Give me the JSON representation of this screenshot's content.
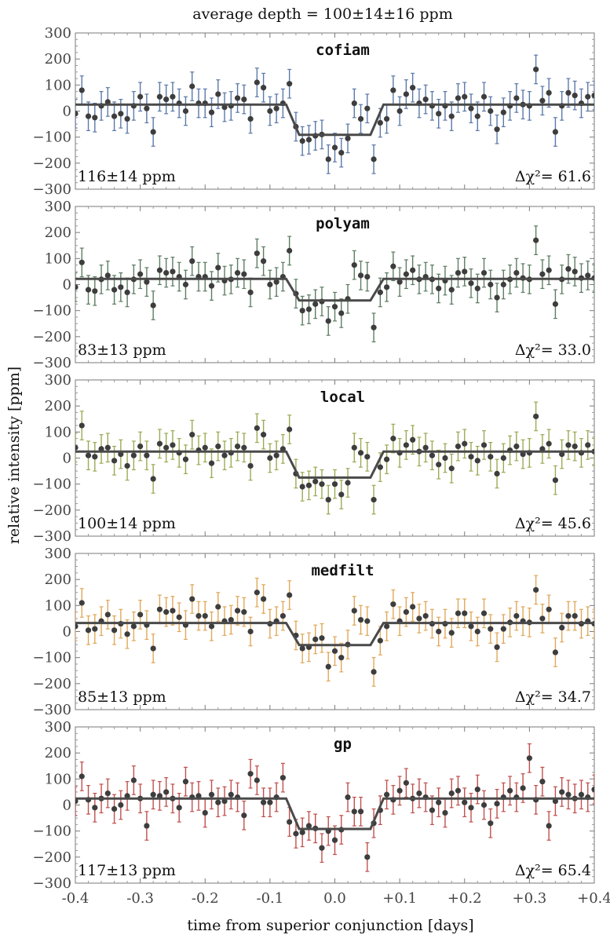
{
  "figure": {
    "title": "average depth = 100±14±16 ppm",
    "xlabel": "time from superior conjunction [days]",
    "ylabel": "relative intensity [ppm]"
  },
  "chart_data": {
    "type": "scatter",
    "xlim": [
      -0.4,
      0.4
    ],
    "ylim": [
      -300,
      300
    ],
    "x_ticks": [
      -0.4,
      -0.3,
      -0.2,
      -0.1,
      0.0,
      0.1,
      0.2,
      0.3,
      0.4
    ],
    "x_tick_labels": [
      "-0.4",
      "-0.3",
      "-0.2",
      "-0.1",
      "0.0",
      "+0.1",
      "+0.2",
      "+0.3",
      "+0.4"
    ],
    "y_ticks": [
      300,
      200,
      100,
      0,
      -100,
      -200,
      -300
    ],
    "y_tick_labels": [
      "300",
      "200",
      "100",
      "0",
      "−100",
      "−200",
      "−300"
    ],
    "x": [
      -0.4,
      -0.39,
      -0.38,
      -0.37,
      -0.36,
      -0.35,
      -0.34,
      -0.33,
      -0.32,
      -0.31,
      -0.3,
      -0.29,
      -0.28,
      -0.27,
      -0.26,
      -0.25,
      -0.24,
      -0.23,
      -0.22,
      -0.21,
      -0.2,
      -0.19,
      -0.18,
      -0.17,
      -0.16,
      -0.15,
      -0.14,
      -0.13,
      -0.12,
      -0.11,
      -0.1,
      -0.09,
      -0.08,
      -0.07,
      -0.06,
      -0.05,
      -0.04,
      -0.03,
      -0.02,
      -0.01,
      0.0,
      0.01,
      0.02,
      0.03,
      0.04,
      0.05,
      0.06,
      0.07,
      0.08,
      0.09,
      0.1,
      0.11,
      0.12,
      0.13,
      0.14,
      0.15,
      0.16,
      0.17,
      0.18,
      0.19,
      0.2,
      0.21,
      0.22,
      0.23,
      0.24,
      0.25,
      0.26,
      0.27,
      0.28,
      0.29,
      0.3,
      0.31,
      0.32,
      0.33,
      0.34,
      0.35,
      0.36,
      0.37,
      0.38,
      0.39,
      0.4
    ],
    "model_x": [
      -0.4,
      -0.075,
      -0.055,
      0.055,
      0.075,
      0.4
    ],
    "error_bar": 55,
    "panels": [
      {
        "name": "cofiam",
        "depth_label": "116±14 ppm",
        "chi2_label": "Δχ²= 61.6",
        "color": "#5b79a8",
        "baseline": 25,
        "depth": 116,
        "y": [
          -10,
          80,
          -20,
          -25,
          20,
          35,
          -20,
          -10,
          -30,
          20,
          55,
          10,
          -80,
          55,
          45,
          55,
          30,
          0,
          95,
          30,
          30,
          -5,
          65,
          15,
          20,
          50,
          45,
          -30,
          110,
          90,
          0,
          10,
          30,
          105,
          -60,
          -115,
          -110,
          -95,
          -90,
          -185,
          -140,
          -160,
          -105,
          30,
          -30,
          10,
          -185,
          -45,
          -30,
          80,
          0,
          65,
          90,
          30,
          45,
          20,
          -10,
          20,
          -20,
          50,
          55,
          10,
          -20,
          55,
          0,
          -70,
          -5,
          20,
          50,
          25,
          20,
          160,
          40,
          70,
          -80,
          20,
          70,
          60,
          30,
          55,
          60
        ]
      },
      {
        "name": "polyam",
        "depth_label": "83±13 ppm",
        "chi2_label": "Δχ²= 33.0",
        "color": "#5d7d62",
        "baseline": 22,
        "depth": 83,
        "y": [
          -10,
          85,
          -20,
          -25,
          20,
          35,
          -20,
          -10,
          -30,
          20,
          40,
          10,
          -80,
          55,
          45,
          50,
          30,
          0,
          90,
          30,
          30,
          -5,
          65,
          15,
          20,
          45,
          40,
          -30,
          120,
          90,
          0,
          10,
          30,
          130,
          -35,
          -100,
          -95,
          -75,
          -65,
          -140,
          -85,
          -110,
          -55,
          75,
          35,
          30,
          -165,
          -30,
          -10,
          70,
          10,
          40,
          55,
          20,
          30,
          20,
          -15,
          15,
          -20,
          45,
          50,
          5,
          -15,
          45,
          0,
          -50,
          0,
          20,
          45,
          25,
          20,
          170,
          40,
          55,
          -75,
          20,
          60,
          50,
          25,
          35,
          25
        ]
      },
      {
        "name": "local",
        "depth_label": "100±14 ppm",
        "chi2_label": "Δχ²= 45.6",
        "color": "#9aab55",
        "baseline": 25,
        "depth": 100,
        "y": [
          40,
          125,
          10,
          5,
          35,
          40,
          -10,
          15,
          -30,
          10,
          45,
          10,
          -80,
          55,
          40,
          50,
          20,
          -5,
          90,
          30,
          40,
          -20,
          45,
          10,
          20,
          45,
          40,
          -30,
          115,
          90,
          0,
          10,
          35,
          110,
          -60,
          -110,
          -105,
          -90,
          -100,
          -160,
          -100,
          -140,
          -95,
          40,
          20,
          5,
          -160,
          -35,
          -5,
          75,
          20,
          50,
          70,
          25,
          40,
          10,
          -25,
          0,
          -40,
          45,
          55,
          5,
          -10,
          50,
          5,
          -60,
          0,
          30,
          45,
          15,
          20,
          160,
          35,
          55,
          -85,
          15,
          50,
          45,
          20,
          50,
          25
        ]
      },
      {
        "name": "medfilt",
        "depth_label": "85±13 ppm",
        "chi2_label": "Δχ²= 34.7",
        "color": "#e0a85a",
        "baseline": 33,
        "depth": 85,
        "y": [
          20,
          110,
          5,
          10,
          40,
          65,
          5,
          30,
          -10,
          20,
          65,
          25,
          -65,
          85,
          75,
          80,
          55,
          25,
          125,
          60,
          60,
          20,
          95,
          40,
          45,
          80,
          75,
          0,
          150,
          125,
          30,
          40,
          60,
          140,
          -15,
          -65,
          -60,
          -30,
          -25,
          -135,
          -75,
          -100,
          -50,
          80,
          45,
          40,
          -155,
          -35,
          20,
          105,
          40,
          75,
          95,
          50,
          60,
          30,
          0,
          30,
          -5,
          70,
          70,
          20,
          0,
          70,
          10,
          -60,
          10,
          35,
          60,
          40,
          35,
          160,
          50,
          85,
          -80,
          15,
          60,
          60,
          30,
          40,
          30
        ]
      },
      {
        "name": "gp",
        "depth_label": "117±13 ppm",
        "chi2_label": "Δχ²= 65.4",
        "color": "#c0504d",
        "baseline": 25,
        "depth": 117,
        "y": [
          15,
          110,
          20,
          -10,
          25,
          45,
          -15,
          0,
          35,
          95,
          25,
          -80,
          40,
          35,
          50,
          25,
          -10,
          90,
          30,
          35,
          -30,
          40,
          10,
          15,
          40,
          30,
          -40,
          120,
          95,
          10,
          10,
          30,
          105,
          -65,
          -110,
          -105,
          -80,
          -90,
          -165,
          -100,
          -135,
          -95,
          30,
          -25,
          -25,
          -200,
          -70,
          -20,
          40,
          20,
          55,
          85,
          25,
          45,
          30,
          -20,
          10,
          -30,
          45,
          55,
          10,
          -10,
          60,
          0,
          -70,
          5,
          30,
          55,
          30,
          65,
          180,
          20,
          90,
          -80,
          15,
          50,
          40,
          25,
          40,
          30,
          60
        ]
      }
    ]
  }
}
